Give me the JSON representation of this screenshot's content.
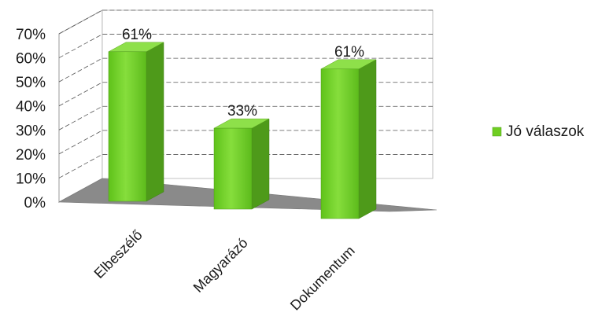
{
  "chart_data": {
    "type": "bar",
    "style": "3d-column",
    "categories": [
      "Elbeszélő",
      "Magyarázó",
      "Dokumentum"
    ],
    "series": [
      {
        "name": "Jó válaszok",
        "values": [
          61,
          33,
          61
        ],
        "color": "#6fce22"
      }
    ],
    "data_labels": [
      "61%",
      "33%",
      "61%"
    ],
    "y_ticks": [
      "0%",
      "10%",
      "20%",
      "30%",
      "40%",
      "50%",
      "60%",
      "70%"
    ],
    "ylim": [
      0,
      70
    ],
    "grid": true,
    "legend": {
      "position": "right",
      "label": "Jó válaszok"
    },
    "colors": {
      "bar_front": "#6fce22",
      "bar_side": "#4e9a1a",
      "bar_top": "#8ee04a",
      "floor": "#8a8a8a",
      "wall": "#ffffff"
    }
  }
}
